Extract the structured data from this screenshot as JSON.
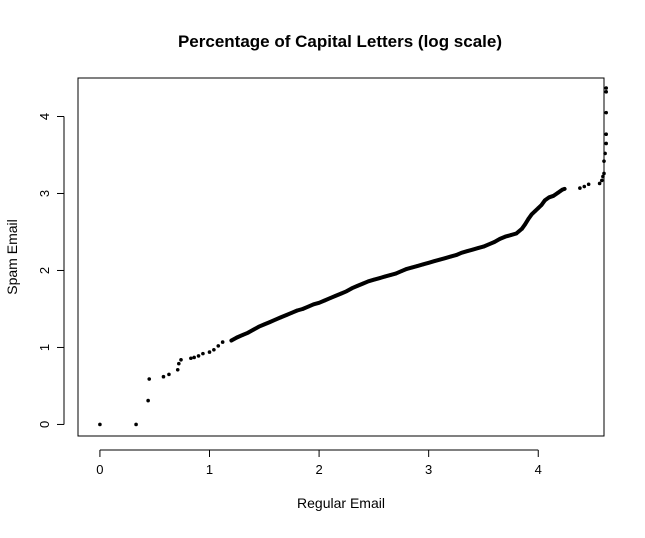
{
  "chart_data": {
    "type": "scatter",
    "title": "Percentage of Capital Letters (log scale)",
    "xlabel": "Regular Email",
    "ylabel": "Spam Email",
    "xlim": [
      -0.2,
      4.6
    ],
    "ylim": [
      -0.15,
      4.5
    ],
    "x_ticks": [
      0,
      1,
      2,
      3,
      4
    ],
    "y_ticks": [
      0,
      1,
      2,
      3,
      4
    ],
    "x_tick_labels": [
      "0",
      "1",
      "2",
      "3",
      "4"
    ],
    "y_tick_labels": [
      "0",
      "1",
      "2",
      "3",
      "4"
    ],
    "grid": false,
    "legend": "none",
    "point_color": "#000000",
    "points": [
      [
        0.0,
        0.0
      ],
      [
        0.33,
        0.0
      ],
      [
        0.44,
        0.31
      ],
      [
        0.45,
        0.59
      ],
      [
        0.58,
        0.62
      ],
      [
        0.63,
        0.65
      ],
      [
        0.71,
        0.71
      ],
      [
        0.72,
        0.79
      ],
      [
        0.74,
        0.84
      ],
      [
        0.83,
        0.86
      ],
      [
        0.86,
        0.87
      ],
      [
        0.9,
        0.89
      ],
      [
        0.94,
        0.92
      ],
      [
        1.0,
        0.94
      ],
      [
        1.04,
        0.97
      ],
      [
        1.08,
        1.02
      ],
      [
        1.12,
        1.07
      ],
      [
        1.2,
        1.09
      ],
      [
        1.25,
        1.13
      ],
      [
        1.3,
        1.16
      ],
      [
        1.35,
        1.19
      ],
      [
        1.4,
        1.23
      ],
      [
        1.45,
        1.27
      ],
      [
        1.5,
        1.3
      ],
      [
        1.55,
        1.33
      ],
      [
        1.6,
        1.36
      ],
      [
        1.65,
        1.39
      ],
      [
        1.7,
        1.42
      ],
      [
        1.75,
        1.45
      ],
      [
        1.8,
        1.48
      ],
      [
        1.85,
        1.5
      ],
      [
        1.9,
        1.53
      ],
      [
        1.95,
        1.56
      ],
      [
        2.0,
        1.58
      ],
      [
        2.05,
        1.61
      ],
      [
        2.1,
        1.64
      ],
      [
        2.15,
        1.67
      ],
      [
        2.2,
        1.7
      ],
      [
        2.25,
        1.73
      ],
      [
        2.3,
        1.77
      ],
      [
        2.35,
        1.8
      ],
      [
        2.4,
        1.83
      ],
      [
        2.45,
        1.86
      ],
      [
        2.5,
        1.88
      ],
      [
        2.55,
        1.9
      ],
      [
        2.6,
        1.92
      ],
      [
        2.65,
        1.94
      ],
      [
        2.7,
        1.96
      ],
      [
        2.75,
        1.99
      ],
      [
        2.8,
        2.02
      ],
      [
        2.85,
        2.04
      ],
      [
        2.9,
        2.06
      ],
      [
        2.95,
        2.08
      ],
      [
        3.0,
        2.1
      ],
      [
        3.05,
        2.12
      ],
      [
        3.1,
        2.14
      ],
      [
        3.15,
        2.16
      ],
      [
        3.2,
        2.18
      ],
      [
        3.25,
        2.2
      ],
      [
        3.3,
        2.23
      ],
      [
        3.35,
        2.25
      ],
      [
        3.4,
        2.27
      ],
      [
        3.45,
        2.29
      ],
      [
        3.5,
        2.31
      ],
      [
        3.55,
        2.34
      ],
      [
        3.6,
        2.37
      ],
      [
        3.65,
        2.41
      ],
      [
        3.7,
        2.44
      ],
      [
        3.75,
        2.46
      ],
      [
        3.8,
        2.48
      ],
      [
        3.85,
        2.54
      ],
      [
        3.88,
        2.6
      ],
      [
        3.91,
        2.67
      ],
      [
        3.94,
        2.73
      ],
      [
        3.97,
        2.77
      ],
      [
        4.0,
        2.81
      ],
      [
        4.03,
        2.85
      ],
      [
        4.06,
        2.91
      ],
      [
        4.1,
        2.95
      ],
      [
        4.14,
        2.97
      ],
      [
        4.18,
        3.01
      ],
      [
        4.22,
        3.05
      ],
      [
        4.24,
        3.06
      ],
      [
        4.38,
        3.07
      ],
      [
        4.42,
        3.09
      ],
      [
        4.46,
        3.12
      ],
      [
        4.56,
        3.13
      ],
      [
        4.58,
        3.17
      ],
      [
        4.59,
        3.22
      ],
      [
        4.6,
        3.26
      ],
      [
        4.6,
        3.42
      ],
      [
        4.61,
        3.52
      ],
      [
        4.62,
        3.65
      ],
      [
        4.62,
        3.77
      ],
      [
        4.62,
        4.05
      ],
      [
        4.62,
        4.32
      ],
      [
        4.62,
        4.37
      ]
    ]
  }
}
